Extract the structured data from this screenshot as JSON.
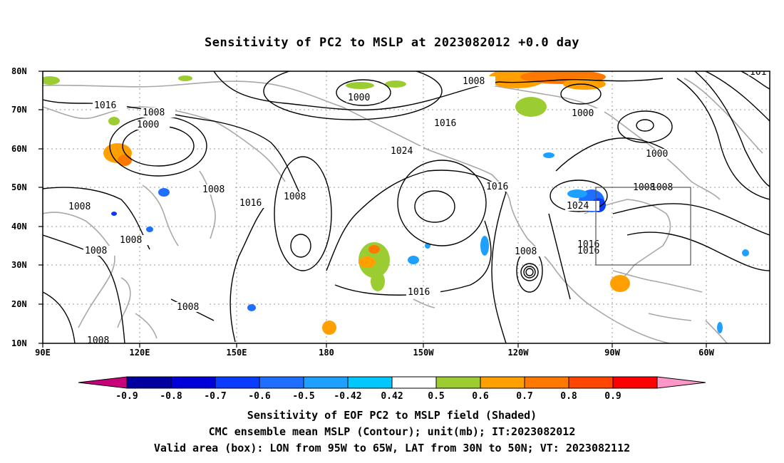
{
  "title": "Sensitivity of PC2 to MSLP at 2023082012 +0.0 day",
  "map": {
    "lat_labels": [
      "80N",
      "70N",
      "60N",
      "50N",
      "40N",
      "30N",
      "20N",
      "10N"
    ],
    "lon_labels": [
      "90E",
      "120E",
      "150E",
      "180",
      "150W",
      "120W",
      "90W",
      "60W"
    ],
    "contour_labels": [
      {
        "text": "1016"
      },
      {
        "text": "1008"
      },
      {
        "text": "1000"
      },
      {
        "text": "1008"
      },
      {
        "text": "1008"
      },
      {
        "text": "1008"
      },
      {
        "text": "1008"
      },
      {
        "text": "1008"
      },
      {
        "text": "1016"
      },
      {
        "text": "1008"
      },
      {
        "text": "1000"
      },
      {
        "text": "1008"
      },
      {
        "text": "1016"
      },
      {
        "text": "1024"
      },
      {
        "text": "1016"
      },
      {
        "text": "1016"
      },
      {
        "text": "1008"
      },
      {
        "text": "1000"
      },
      {
        "text": "1000"
      },
      {
        "text": "1008"
      },
      {
        "text": "1024"
      },
      {
        "text": "1016"
      },
      {
        "text": "1016"
      },
      {
        "text": "1008"
      },
      {
        "text": "1008"
      },
      {
        "text": "101"
      }
    ],
    "valid_box": {
      "lon_from": "95W",
      "lon_to": "65W",
      "lat_from": "30N",
      "lat_to": "50N"
    }
  },
  "colorbar": {
    "ticks": [
      "-0.9",
      "-0.8",
      "-0.7",
      "-0.6",
      "-0.5",
      "-0.42",
      "0.42",
      "0.5",
      "0.6",
      "0.7",
      "0.8",
      "0.9"
    ],
    "colors": [
      "#c8007a",
      "#0000a0",
      "#0000d8",
      "#0a3cff",
      "#1e6eff",
      "#1ea0ff",
      "#00c8ff",
      "#ffffff",
      "#9bcd32",
      "#ffa000",
      "#ff7800",
      "#ff4600",
      "#ff0000",
      "#ff96c8"
    ]
  },
  "caption": {
    "line1": "Sensitivity of EOF PC2 to MSLP field (Shaded)",
    "line2": "CMC ensemble mean MSLP (Contour); unit(mb); IT:2023082012",
    "line3": "Valid area (box): LON from 95W to 65W, LAT from 30N to 50N; VT: 2023082112"
  }
}
